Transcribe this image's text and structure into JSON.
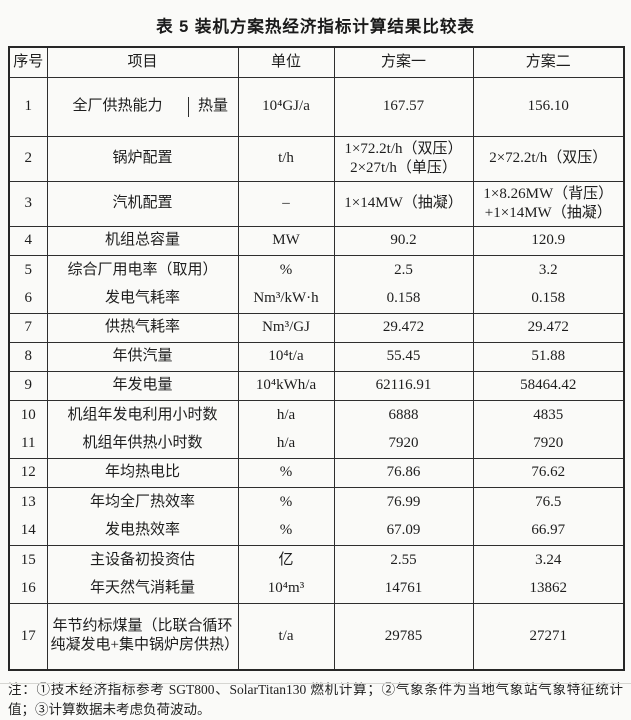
{
  "title": "表 5  装机方案热经济指标计算结果比较表",
  "table": {
    "headers": {
      "no": "序号",
      "item": "项目",
      "unit": "单位",
      "plan1": "方案一",
      "plan2": "方案二"
    },
    "rows": [
      {
        "no": "1",
        "item": "全厂供热能力",
        "item_sub": "热量",
        "unit": "10⁴GJ/a",
        "plan1": "167.57",
        "plan2": "156.10"
      },
      {
        "no": "2",
        "item": "锅炉配置",
        "unit": "t/h",
        "plan1": "1×72.2t/h（双压）\n2×27t/h（单压）",
        "plan2": "2×72.2t/h（双压）"
      },
      {
        "no": "3",
        "item": "汽机配置",
        "unit": "–",
        "plan1": "1×14MW（抽凝）",
        "plan2": "1×8.26MW（背压）\n+1×14MW（抽凝）"
      },
      {
        "no": "4",
        "item": "机组总容量",
        "unit": "MW",
        "plan1": "90.2",
        "plan2": "120.9"
      },
      {
        "no": "5",
        "item": "综合厂用电率（取用）",
        "unit": "%",
        "plan1": "2.5",
        "plan2": "3.2"
      },
      {
        "no": "6",
        "item": "发电气耗率",
        "unit": "Nm³/kW·h",
        "plan1": "0.158",
        "plan2": "0.158"
      },
      {
        "no": "7",
        "item": "供热气耗率",
        "unit": "Nm³/GJ",
        "plan1": "29.472",
        "plan2": "29.472"
      },
      {
        "no": "8",
        "item": "年供汽量",
        "unit": "10⁴t/a",
        "plan1": "55.45",
        "plan2": "51.88"
      },
      {
        "no": "9",
        "item": "年发电量",
        "unit": "10⁴kWh/a",
        "plan1": "62116.91",
        "plan2": "58464.42"
      },
      {
        "no": "10",
        "item": "机组年发电利用小时数",
        "unit": "h/a",
        "plan1": "6888",
        "plan2": "4835"
      },
      {
        "no": "11",
        "item": "机组年供热小时数",
        "unit": "h/a",
        "plan1": "7920",
        "plan2": "7920"
      },
      {
        "no": "12",
        "item": "年均热电比",
        "unit": "%",
        "plan1": "76.86",
        "plan2": "76.62"
      },
      {
        "no": "13",
        "item": "年均全厂热效率",
        "unit": "%",
        "plan1": "76.99",
        "plan2": "76.5"
      },
      {
        "no": "14",
        "item": "发电热效率",
        "unit": "%",
        "plan1": "67.09",
        "plan2": "66.97"
      },
      {
        "no": "15",
        "item": "主设备初投资估",
        "unit": "亿",
        "plan1": "2.55",
        "plan2": "3.24"
      },
      {
        "no": "16",
        "item": "年天然气消耗量",
        "unit": "10⁴m³",
        "plan1": "14761",
        "plan2": "13862"
      },
      {
        "no": "17",
        "item": "年节约标煤量（比联合循环纯凝发电+集中锅炉房供热）",
        "unit": "t/a",
        "plan1": "29785",
        "plan2": "27271"
      }
    ]
  },
  "note": "注：①技术经济指标参考 SGT800、SolarTitan130 燃机计算；②气象条件为当地气象站气象特征统计值；③计算数据未考虑负荷波动。",
  "colors": {
    "background": "#fafaf8",
    "border": "#2e2e2e",
    "text": "#1d1d1d"
  }
}
